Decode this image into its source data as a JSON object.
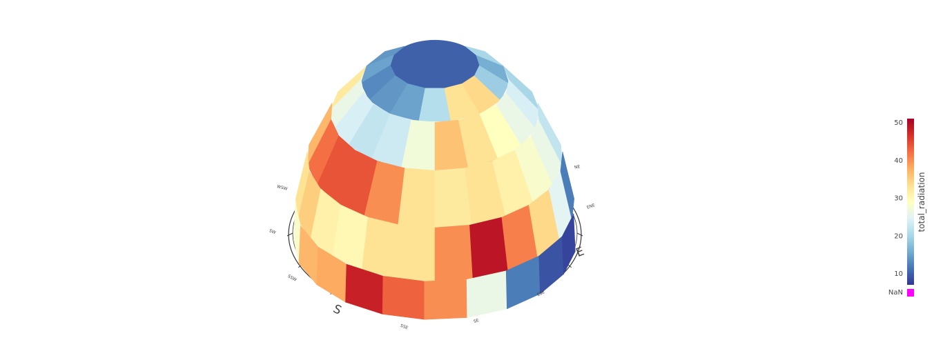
{
  "chart_data": {
    "type": "heatmap",
    "title": "",
    "projection": "3d-dome",
    "rings": 5,
    "sectors": 16,
    "direction_labels": {
      "major": [
        "S",
        "E"
      ],
      "minor": [
        "SSW",
        "SW",
        "WSW",
        "NE",
        "ENE",
        "ESE",
        "SE",
        "SSE"
      ]
    },
    "colorbar": {
      "title": "total_radiation",
      "ticks": [
        10,
        20,
        30,
        40,
        50
      ],
      "min": 7,
      "max": 51,
      "nan_label": "NaN",
      "nan_color": "#ff00ff",
      "colorscale": [
        "#313695",
        "#4575b4",
        "#74add1",
        "#abd9e9",
        "#e0f3f8",
        "#ffffbf",
        "#fee090",
        "#fdae61",
        "#f46d43",
        "#d73027",
        "#a50026"
      ]
    },
    "visible_cells": [
      {
        "ring": 0,
        "values": [
          14,
          15,
          13,
          14,
          15,
          21,
          33,
          34,
          19,
          16,
          20
        ]
      },
      {
        "ring": 1,
        "values": [
          32,
          26,
          24,
          22,
          23,
          27,
          36,
          33,
          29,
          26,
          24,
          20
        ]
      },
      {
        "ring": 2,
        "values": [
          37,
          42,
          44,
          44,
          40,
          33,
          32,
          33,
          31,
          28,
          26,
          22
        ]
      },
      {
        "ring": 3,
        "values": [
          33,
          35,
          31,
          30,
          33,
          33,
          40,
          49,
          41,
          34,
          25,
          12
        ]
      },
      {
        "ring": 4,
        "values": [
          28,
          37,
          38,
          48,
          43,
          40,
          26,
          12,
          9,
          8
        ]
      }
    ]
  }
}
